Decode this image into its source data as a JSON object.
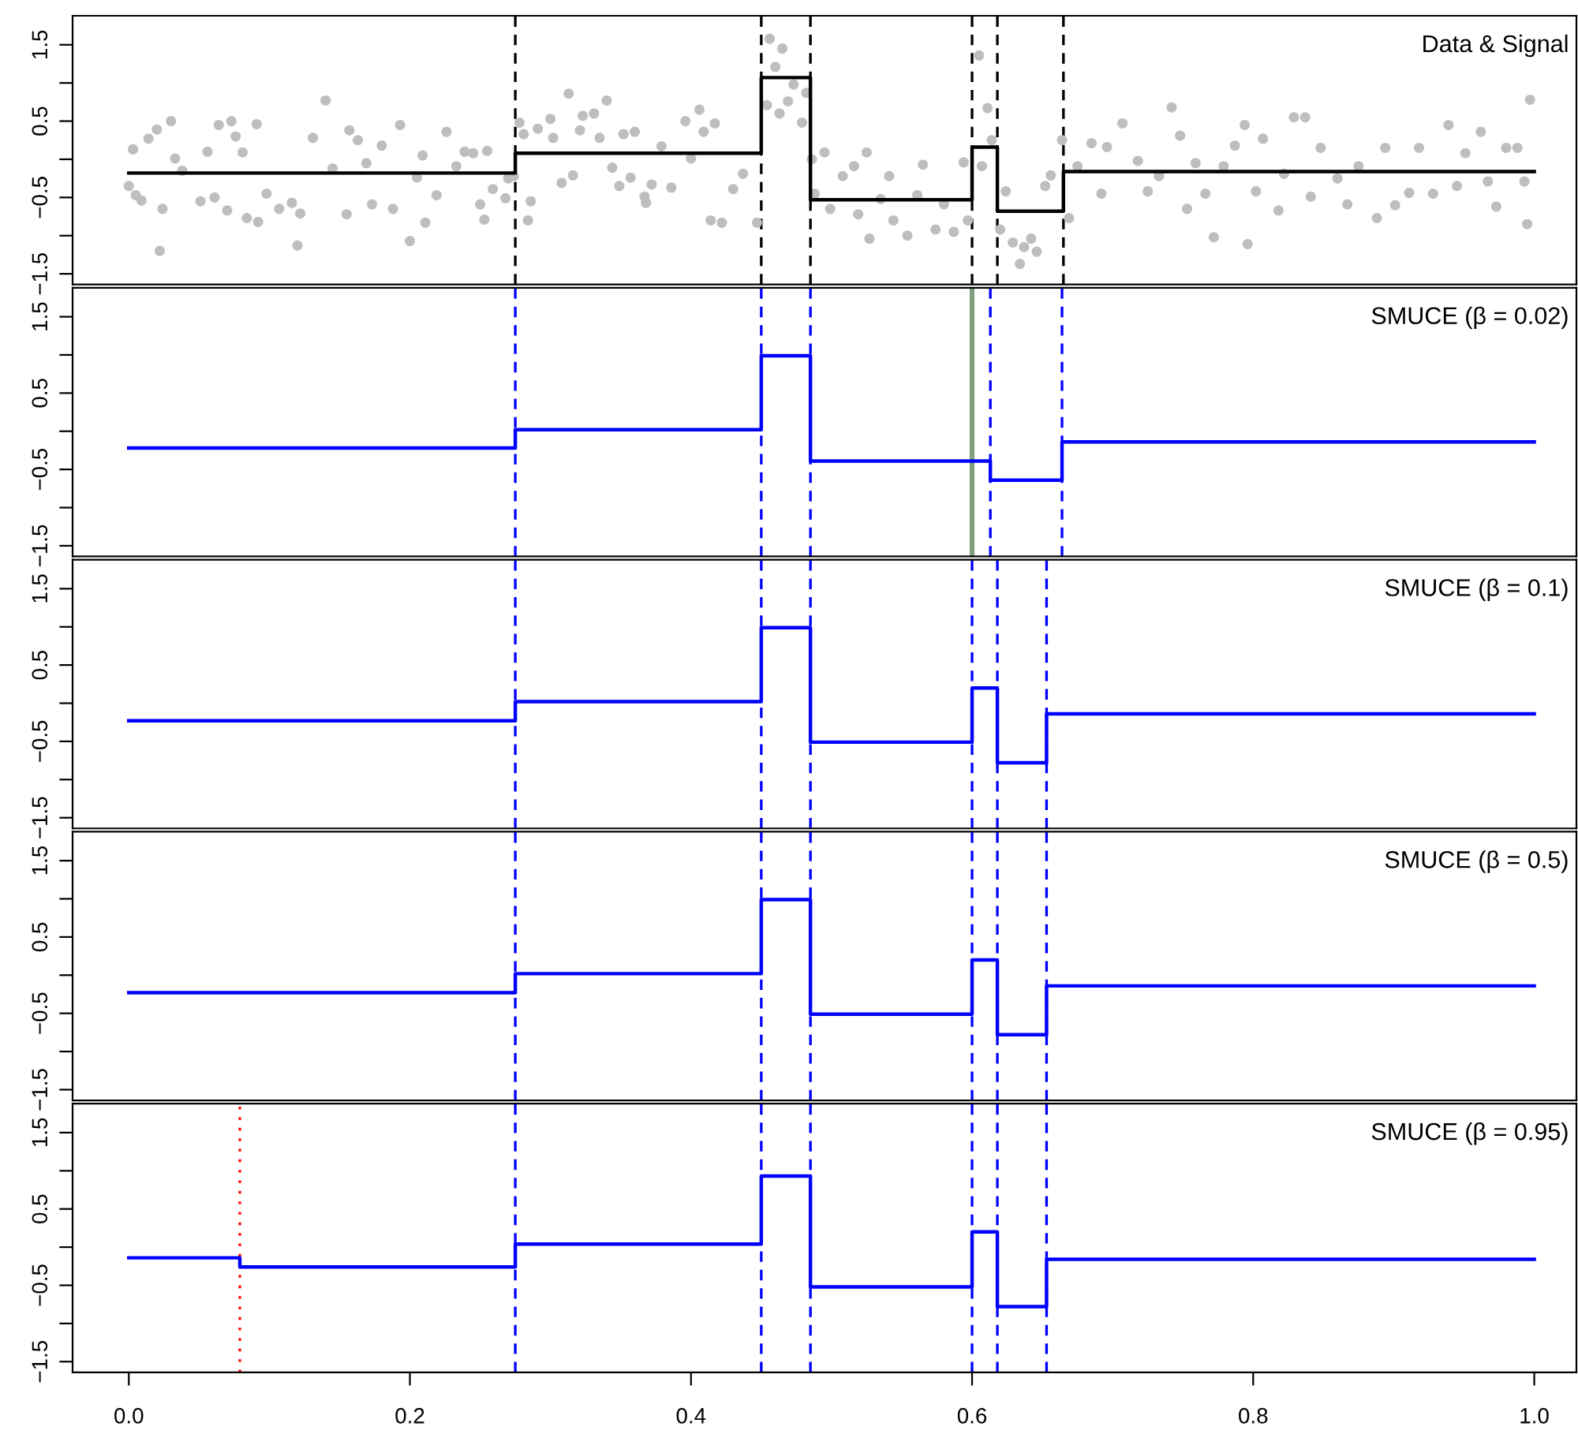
{
  "chart_data": [
    {
      "type": "scatter",
      "title": "Data & Signal",
      "xlim": [
        -0.04,
        1.03
      ],
      "ylim": [
        -1.64,
        1.88
      ],
      "tick_labels": "y",
      "grid": false,
      "yticks": [
        {
          "value": -1.5,
          "label": "−1.5"
        },
        {
          "value": -1,
          "label": null
        },
        {
          "value": -0.5,
          "label": "−0.5"
        },
        {
          "value": 0,
          "label": null
        },
        {
          "value": 0.5,
          "label": "0.5"
        },
        {
          "value": 1,
          "label": null
        },
        {
          "value": 1.5,
          "label": "1.5"
        }
      ],
      "series": [
        {
          "marker": "circle",
          "color": "#bebebe",
          "x": [
            0.0,
            0.003,
            0.005,
            0.009,
            0.014,
            0.02,
            0.022,
            0.024,
            0.03,
            0.033,
            0.038,
            0.051,
            0.056,
            0.061,
            0.064,
            0.07,
            0.073,
            0.076,
            0.081,
            0.084,
            0.091,
            0.092,
            0.098,
            0.107,
            0.116,
            0.12,
            0.122,
            0.131,
            0.14,
            0.145,
            0.155,
            0.157,
            0.163,
            0.169,
            0.173,
            0.18,
            0.188,
            0.193,
            0.2,
            0.205,
            0.209,
            0.211,
            0.219,
            0.226,
            0.233,
            0.239,
            0.245,
            0.25,
            0.253,
            0.255,
            0.259,
            0.268,
            0.27,
            0.274,
            0.278,
            0.281,
            0.284,
            0.286,
            0.291,
            0.3,
            0.302,
            0.308,
            0.313,
            0.316,
            0.321,
            0.323,
            0.331,
            0.335,
            0.34,
            0.344,
            0.349,
            0.352,
            0.357,
            0.36,
            0.367,
            0.368,
            0.372,
            0.379,
            0.386,
            0.396,
            0.4,
            0.406,
            0.409,
            0.414,
            0.417,
            0.422,
            0.43,
            0.437,
            0.447,
            0.454,
            0.456,
            0.46,
            0.463,
            0.465,
            0.469,
            0.473,
            0.479,
            0.482,
            0.486,
            0.488,
            0.495,
            0.499,
            0.508,
            0.516,
            0.519,
            0.525,
            0.527,
            0.535,
            0.541,
            0.544,
            0.554,
            0.561,
            0.565,
            0.574,
            0.58,
            0.587,
            0.594,
            0.597,
            0.605,
            0.607,
            0.611,
            0.614,
            0.62,
            0.624,
            0.629,
            0.634,
            0.637,
            0.642,
            0.646,
            0.652,
            0.656,
            0.664,
            0.669,
            0.675,
            0.685,
            0.692,
            0.696,
            0.707,
            0.718,
            0.725,
            0.733,
            0.742,
            0.748,
            0.753,
            0.759,
            0.766,
            0.772,
            0.779,
            0.787,
            0.794,
            0.796,
            0.802,
            0.807,
            0.818,
            0.822,
            0.829,
            0.837,
            0.841,
            0.848,
            0.86,
            0.867,
            0.875,
            0.888,
            0.894,
            0.901,
            0.911,
            0.918,
            0.928,
            0.939,
            0.945,
            0.951,
            0.962,
            0.967,
            0.973,
            0.98,
            0.988,
            0.993,
            0.995,
            0.997
          ],
          "values": [
            -0.35,
            0.13,
            -0.47,
            -0.54,
            0.27,
            0.39,
            -1.2,
            -0.65,
            0.5,
            0.01,
            -0.15,
            -0.55,
            0.1,
            -0.5,
            0.45,
            -0.67,
            0.5,
            0.3,
            0.09,
            -0.77,
            0.46,
            -0.82,
            -0.45,
            -0.65,
            -0.57,
            -1.13,
            -0.71,
            0.28,
            0.77,
            -0.12,
            -0.72,
            0.38,
            0.25,
            -0.05,
            -0.59,
            0.18,
            -0.65,
            0.45,
            -1.07,
            -0.24,
            0.05,
            -0.83,
            -0.47,
            0.36,
            -0.09,
            0.1,
            0.08,
            -0.59,
            -0.79,
            0.11,
            -0.39,
            -0.51,
            -0.25,
            -0.22,
            0.48,
            0.33,
            -0.8,
            -0.55,
            0.4,
            0.53,
            0.28,
            -0.31,
            0.86,
            -0.21,
            0.38,
            0.57,
            0.6,
            0.28,
            0.77,
            -0.11,
            -0.35,
            0.33,
            -0.24,
            0.36,
            -0.49,
            -0.57,
            -0.33,
            0.17,
            -0.37,
            0.5,
            0.01,
            0.65,
            0.36,
            -0.8,
            0.47,
            -0.83,
            -0.39,
            -0.19,
            -0.83,
            0.71,
            1.58,
            1.21,
            0.6,
            1.45,
            0.76,
            0.98,
            0.48,
            0.87,
            0.0,
            -0.45,
            0.09,
            -0.65,
            -0.22,
            -0.09,
            -0.72,
            0.09,
            -1.04,
            -0.52,
            -0.22,
            -0.8,
            -1.0,
            -0.47,
            -0.07,
            -0.92,
            -0.59,
            -0.95,
            -0.04,
            -0.8,
            1.36,
            -0.09,
            0.67,
            0.25,
            -0.92,
            -0.42,
            -1.09,
            -1.37,
            -1.15,
            -1.04,
            -1.21,
            -0.35,
            -0.21,
            0.25,
            -0.77,
            -0.09,
            0.21,
            -0.45,
            0.16,
            0.47,
            -0.02,
            -0.42,
            -0.22,
            0.68,
            0.31,
            -0.65,
            -0.05,
            -0.45,
            -1.02,
            -0.09,
            0.18,
            0.45,
            -1.11,
            -0.42,
            0.27,
            -0.67,
            -0.19,
            0.55,
            0.55,
            -0.49,
            0.15,
            -0.25,
            -0.59,
            -0.09,
            -0.77,
            0.15,
            -0.6,
            -0.44,
            0.15,
            -0.45,
            0.45,
            -0.35,
            0.08,
            0.36,
            -0.29,
            -0.62,
            0.15,
            0.15,
            -0.29,
            -0.85,
            0.78
          ]
        },
        {
          "type": "step",
          "color": "#000000",
          "x": [
            0,
            0.275,
            0.45,
            0.485,
            0.6,
            0.618,
            0.665,
            1.0
          ],
          "values": [
            -0.18,
            0.08,
            1.07,
            -0.53,
            0.16,
            -0.68,
            -0.16,
            -0.16
          ]
        }
      ],
      "ref_lines": [
        {
          "axis": "x",
          "value": 0.275,
          "color": "#000000",
          "line_style": "dashed"
        },
        {
          "axis": "x",
          "value": 0.45,
          "color": "#000000",
          "line_style": "dashed"
        },
        {
          "axis": "x",
          "value": 0.485,
          "color": "#000000",
          "line_style": "dashed"
        },
        {
          "axis": "x",
          "value": 0.6,
          "color": "#000000",
          "line_style": "dashed"
        },
        {
          "axis": "x",
          "value": 0.618,
          "color": "#000000",
          "line_style": "dashed"
        },
        {
          "axis": "x",
          "value": 0.665,
          "color": "#000000",
          "line_style": "dashed"
        }
      ]
    },
    {
      "type": "step",
      "title": "SMUCE (β = 0.02)",
      "xlim": [
        -0.04,
        1.03
      ],
      "ylim": [
        -1.64,
        1.88
      ],
      "tick_labels": "y",
      "grid": false,
      "yticks": [
        {
          "value": -1.5,
          "label": "−1.5"
        },
        {
          "value": -1,
          "label": null
        },
        {
          "value": -0.5,
          "label": "−0.5"
        },
        {
          "value": 0,
          "label": null
        },
        {
          "value": 0.5,
          "label": "0.5"
        },
        {
          "value": 1,
          "label": null
        },
        {
          "value": 1.5,
          "label": "1.5"
        }
      ],
      "series": [
        {
          "color": "#0000ff",
          "x": [
            0,
            0.275,
            0.45,
            0.485,
            0.613,
            0.664,
            1.0
          ],
          "values": [
            -0.22,
            0.02,
            0.99,
            -0.39,
            -0.64,
            -0.14,
            -0.14
          ]
        }
      ],
      "ref_lines": [
        {
          "axis": "x",
          "value": 0.275,
          "color": "#0000ff",
          "line_style": "dashed"
        },
        {
          "axis": "x",
          "value": 0.45,
          "color": "#0000ff",
          "line_style": "dashed"
        },
        {
          "axis": "x",
          "value": 0.485,
          "color": "#0000ff",
          "line_style": "dashed"
        },
        {
          "axis": "x",
          "value": 0.613,
          "color": "#0000ff",
          "line_style": "dashed"
        },
        {
          "axis": "x",
          "value": 0.664,
          "color": "#0000ff",
          "line_style": "dashed"
        },
        {
          "axis": "x",
          "value": 0.6,
          "color": "#7f9f7f",
          "line_style": "solid"
        }
      ]
    },
    {
      "type": "step",
      "title": "SMUCE (β = 0.1)",
      "xlim": [
        -0.04,
        1.03
      ],
      "ylim": [
        -1.64,
        1.88
      ],
      "tick_labels": "y",
      "grid": false,
      "yticks": [
        {
          "value": -1.5,
          "label": "−1.5"
        },
        {
          "value": -1,
          "label": null
        },
        {
          "value": -0.5,
          "label": "−0.5"
        },
        {
          "value": 0,
          "label": null
        },
        {
          "value": 0.5,
          "label": "0.5"
        },
        {
          "value": 1,
          "label": null
        },
        {
          "value": 1.5,
          "label": "1.5"
        }
      ],
      "series": [
        {
          "type": "step",
          "color": "#0000ff",
          "x": [
            0,
            0.275,
            0.45,
            0.485,
            0.6,
            0.618,
            0.653,
            1.0
          ],
          "values": [
            -0.23,
            0.02,
            0.99,
            -0.51,
            0.2,
            -0.78,
            -0.14,
            -0.14
          ]
        }
      ],
      "ref_lines": [
        {
          "axis": "x",
          "value": 0.275,
          "color": "#0000ff",
          "line_style": "dashed"
        },
        {
          "axis": "x",
          "value": 0.45,
          "color": "#0000ff",
          "line_style": "dashed"
        },
        {
          "axis": "x",
          "value": 0.485,
          "color": "#0000ff",
          "line_style": "dashed"
        },
        {
          "axis": "x",
          "value": 0.6,
          "color": "#0000ff",
          "line_style": "dashed"
        },
        {
          "axis": "x",
          "value": 0.618,
          "color": "#0000ff",
          "line_style": "dashed"
        },
        {
          "axis": "x",
          "value": 0.653,
          "color": "#0000ff",
          "line_style": "dashed"
        }
      ]
    },
    {
      "type": "step",
      "title": "SMUCE (β = 0.5)",
      "xlim": [
        -0.04,
        1.03
      ],
      "ylim": [
        -1.64,
        1.88
      ],
      "tick_labels": "y",
      "grid": false,
      "yticks": [
        {
          "value": -1.5,
          "label": "−1.5"
        },
        {
          "value": -1,
          "label": null
        },
        {
          "value": -0.5,
          "label": "−0.5"
        },
        {
          "value": 0,
          "label": null
        },
        {
          "value": 0.5,
          "label": "0.5"
        },
        {
          "value": 1,
          "label": null
        },
        {
          "value": 1.5,
          "label": "1.5"
        }
      ],
      "series": [
        {
          "type": "step",
          "color": "#0000ff",
          "x": [
            0,
            0.275,
            0.45,
            0.485,
            0.6,
            0.618,
            0.653,
            1.0
          ],
          "values": [
            -0.23,
            0.02,
            0.99,
            -0.51,
            0.2,
            -0.78,
            -0.14,
            -0.14
          ]
        }
      ],
      "ref_lines": [
        {
          "axis": "x",
          "value": 0.275,
          "color": "#0000ff",
          "line_style": "dashed"
        },
        {
          "axis": "x",
          "value": 0.45,
          "color": "#0000ff",
          "line_style": "dashed"
        },
        {
          "axis": "x",
          "value": 0.485,
          "color": "#0000ff",
          "line_style": "dashed"
        },
        {
          "axis": "x",
          "value": 0.6,
          "color": "#0000ff",
          "line_style": "dashed"
        },
        {
          "axis": "x",
          "value": 0.618,
          "color": "#0000ff",
          "line_style": "dashed"
        },
        {
          "axis": "x",
          "value": 0.653,
          "color": "#0000ff",
          "line_style": "dashed"
        }
      ]
    },
    {
      "type": "step",
      "title": "SMUCE (β = 0.95)",
      "xlim": [
        -0.04,
        1.03
      ],
      "ylim": [
        -1.64,
        1.88
      ],
      "grid": false,
      "xticks": [
        {
          "value": 0,
          "label": "0.0"
        },
        {
          "value": 0.2,
          "label": "0.2"
        },
        {
          "value": 0.4,
          "label": "0.4"
        },
        {
          "value": 0.6,
          "label": "0.6"
        },
        {
          "value": 0.8,
          "label": "0.8"
        },
        {
          "value": 1,
          "label": "1.0"
        }
      ],
      "yticks": [
        {
          "value": -1.5,
          "label": "−1.5"
        },
        {
          "value": -1,
          "label": null
        },
        {
          "value": -0.5,
          "label": "−0.5"
        },
        {
          "value": 0,
          "label": null
        },
        {
          "value": 0.5,
          "label": "0.5"
        },
        {
          "value": 1,
          "label": null
        },
        {
          "value": 1.5,
          "label": "1.5"
        }
      ],
      "series": [
        {
          "color": "#0000ff",
          "x": [
            0,
            0.079,
            0.275,
            0.45,
            0.485,
            0.6,
            0.618,
            0.653,
            1.0
          ],
          "values": [
            -0.14,
            -0.26,
            0.04,
            0.93,
            -0.52,
            0.2,
            -0.78,
            -0.16,
            -0.16
          ]
        }
      ],
      "ref_lines": [
        {
          "axis": "x",
          "value": 0.275,
          "color": "#0000ff",
          "line_style": "dashed"
        },
        {
          "axis": "x",
          "value": 0.45,
          "color": "#0000ff",
          "line_style": "dashed"
        },
        {
          "axis": "x",
          "value": 0.485,
          "color": "#0000ff",
          "line_style": "dashed"
        },
        {
          "axis": "x",
          "value": 0.6,
          "color": "#0000ff",
          "line_style": "dashed"
        },
        {
          "axis": "x",
          "value": 0.618,
          "color": "#0000ff",
          "line_style": "dashed"
        },
        {
          "axis": "x",
          "value": 0.653,
          "color": "#0000ff",
          "line_style": "dashed"
        },
        {
          "axis": "x",
          "value": 0.079,
          "color": "#ff0000",
          "line_style": "dotted"
        }
      ]
    }
  ]
}
